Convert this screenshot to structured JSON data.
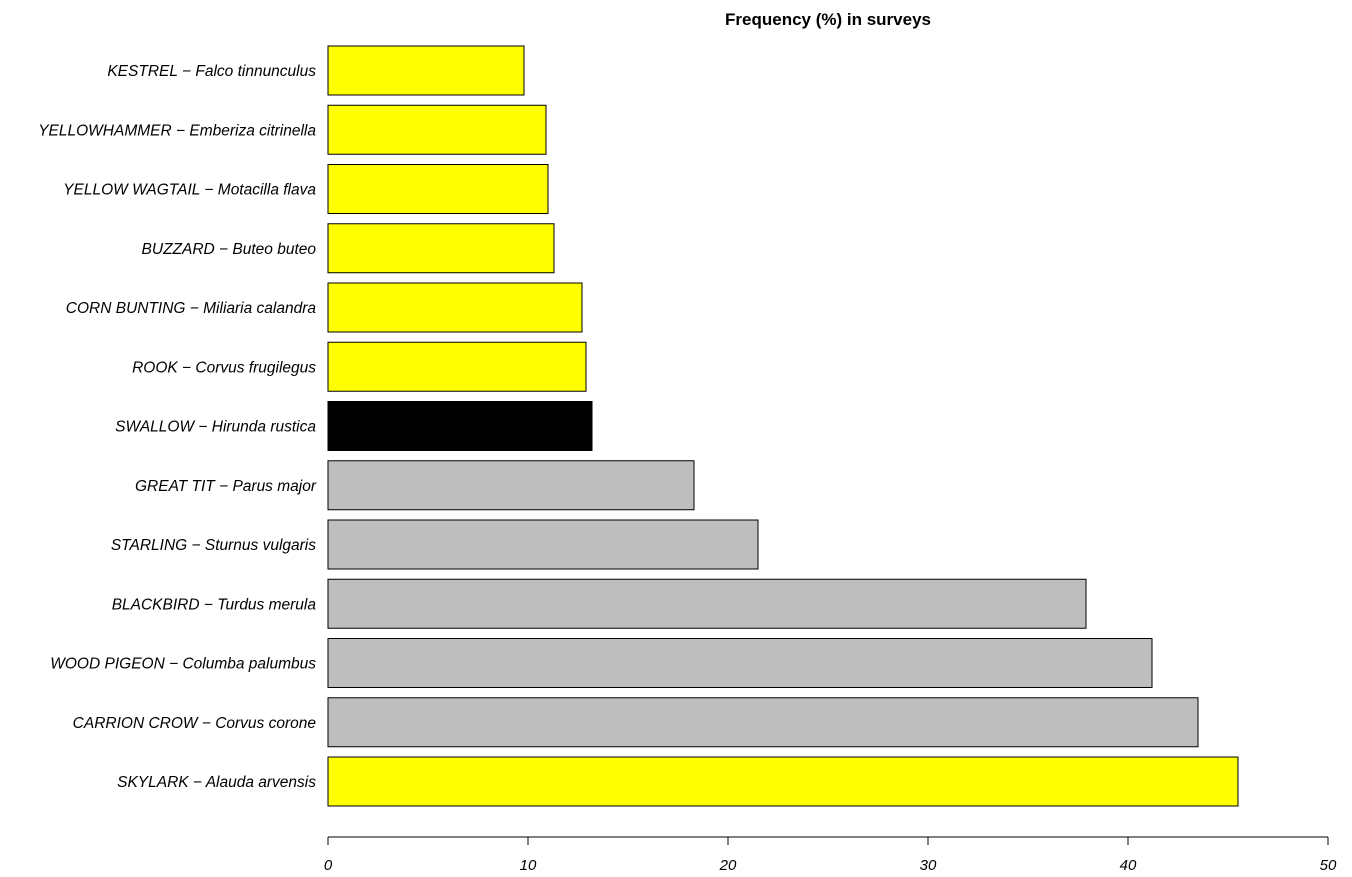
{
  "chart_data": {
    "type": "bar",
    "orientation": "horizontal",
    "title": "Frequency (%) in surveys",
    "xlabel": "",
    "ylabel": "",
    "xlim": [
      0,
      50
    ],
    "xticks": [
      "0",
      "10",
      "20",
      "30",
      "40",
      "50"
    ],
    "grid": false,
    "categories": [
      "KESTREL − Falco tinnunculus",
      "YELLOWHAMMER − Emberiza citrinella",
      "YELLOW WAGTAIL − Motacilla flava",
      "BUZZARD − Buteo buteo",
      "CORN BUNTING − Miliaria calandra",
      "ROOK − Corvus frugilegus",
      "SWALLOW − Hirunda rustica",
      "GREAT TIT − Parus major",
      "STARLING − Sturnus vulgaris",
      "BLACKBIRD − Turdus merula",
      "WOOD PIGEON − Columba palumbus",
      "CARRION CROW − Corvus corone",
      "SKYLARK − Alauda arvensis"
    ],
    "values": [
      9.8,
      10.9,
      11.0,
      11.3,
      12.7,
      12.9,
      13.2,
      18.3,
      21.5,
      37.9,
      41.2,
      43.5,
      45.5
    ],
    "colors": [
      "#ffff00",
      "#ffff00",
      "#ffff00",
      "#ffff00",
      "#ffff00",
      "#ffff00",
      "#000000",
      "#bebebe",
      "#bebebe",
      "#bebebe",
      "#bebebe",
      "#bebebe",
      "#ffff00"
    ]
  }
}
